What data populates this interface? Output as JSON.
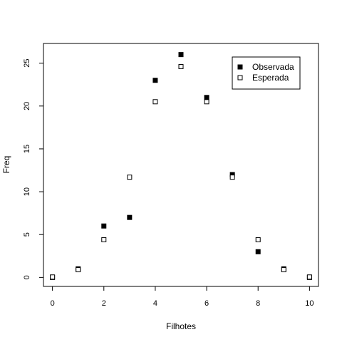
{
  "chart_data": {
    "type": "scatter",
    "xlabel": "Filhotes",
    "ylabel": "Freq",
    "xlim": [
      -0.35,
      10.35
    ],
    "ylim": [
      -1.05,
      27.3
    ],
    "x_ticks": [
      0,
      2,
      4,
      6,
      8,
      10
    ],
    "y_ticks": [
      0,
      5,
      10,
      15,
      20,
      25
    ],
    "grid": false,
    "legend": {
      "placement": "top-right"
    },
    "series": [
      {
        "name": "Observada",
        "marker": "filled-square",
        "color": "#000000",
        "x": [
          0,
          1,
          2,
          3,
          4,
          5,
          6,
          7,
          8,
          9,
          10
        ],
        "y": [
          0,
          1,
          6,
          7,
          23,
          26,
          21,
          12,
          3,
          1,
          0
        ]
      },
      {
        "name": "Esperada",
        "marker": "open-square",
        "color": "#000000",
        "x": [
          0,
          1,
          2,
          3,
          4,
          5,
          6,
          7,
          8,
          9,
          10
        ],
        "y": [
          0.05,
          0.9,
          4.4,
          11.7,
          20.5,
          24.6,
          20.5,
          11.7,
          4.4,
          0.9,
          0.05
        ]
      }
    ]
  }
}
